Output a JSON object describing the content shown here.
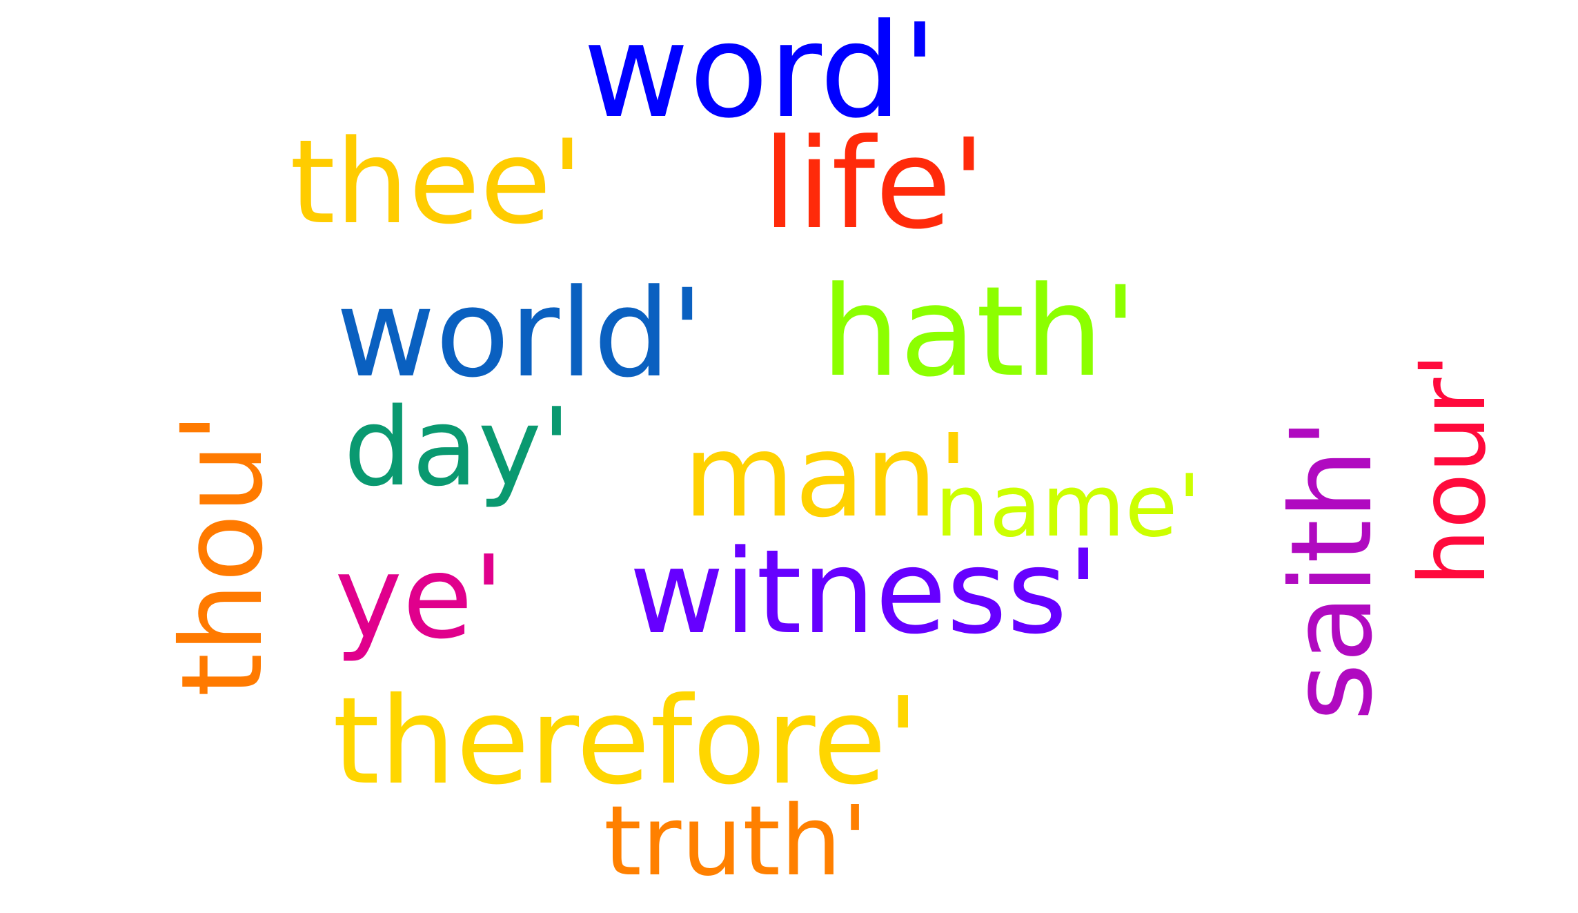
{
  "words": [
    {
      "id": "word",
      "text": "word'",
      "color": "#0000ff"
    },
    {
      "id": "thee",
      "text": "thee'",
      "color": "#ffcc00"
    },
    {
      "id": "life",
      "text": "life'",
      "color": "#ff2a0a"
    },
    {
      "id": "world",
      "text": "world'",
      "color": "#0a60c0"
    },
    {
      "id": "hath",
      "text": "hath'",
      "color": "#8cff00"
    },
    {
      "id": "day",
      "text": "day'",
      "color": "#0a9970"
    },
    {
      "id": "man",
      "text": "man'",
      "color": "#ffd100"
    },
    {
      "id": "name",
      "text": "name'",
      "color": "#ccff00"
    },
    {
      "id": "ye",
      "text": "ye'",
      "color": "#e0008c"
    },
    {
      "id": "witness",
      "text": "witness'",
      "color": "#6600ff"
    },
    {
      "id": "therefore",
      "text": "therefore'",
      "color": "#ffd600"
    },
    {
      "id": "truth",
      "text": "truth'",
      "color": "#ff8000"
    },
    {
      "id": "thou",
      "text": "thou'",
      "color": "#ff7a00"
    },
    {
      "id": "saith",
      "text": "saith'",
      "color": "#b00ac0"
    },
    {
      "id": "hour",
      "text": "hour'",
      "color": "#ff0a3c"
    }
  ]
}
